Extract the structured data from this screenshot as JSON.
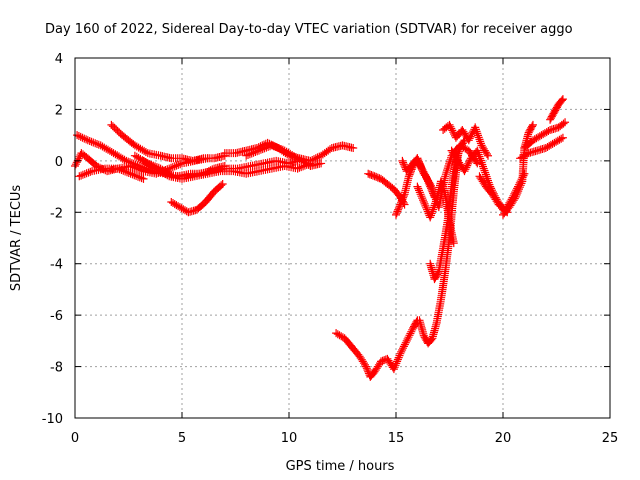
{
  "chart_data": {
    "type": "scatter",
    "title": "Day 160 of 2022, Sidereal Day-to-day VTEC variation (SDTVAR) for receiver aggo",
    "xlabel": "GPS time / hours",
    "ylabel": "SDTVAR / TECUs",
    "xlim": [
      0,
      25
    ],
    "ylim": [
      -10,
      4
    ],
    "xticks": [
      "0",
      "5",
      "10",
      "15",
      "20",
      "25"
    ],
    "yticks": [
      "4",
      "2",
      "0",
      "-2",
      "-4",
      "-6",
      "-8",
      "-10"
    ],
    "grid": true,
    "marker": "plus",
    "color": "#ff0000",
    "series": [
      {
        "x": [
          0.1,
          0.6,
          1.2,
          1.8,
          2.4,
          3.0,
          3.6,
          4.2,
          4.8,
          5.4,
          6.0,
          6.5,
          7.0
        ],
        "y": [
          1.0,
          0.8,
          0.6,
          0.3,
          0.0,
          -0.2,
          -0.4,
          -0.5,
          -0.6,
          -0.5,
          -0.5,
          -0.3,
          -0.2
        ]
      },
      {
        "x": [
          0.2,
          0.8,
          1.4,
          2.0,
          2.6,
          3.2,
          3.8,
          4.4,
          5.0,
          5.6,
          6.2
        ],
        "y": [
          -0.6,
          -0.4,
          -0.3,
          -0.3,
          -0.2,
          -0.4,
          -0.5,
          -0.3,
          -0.1,
          0.0,
          0.1
        ]
      },
      {
        "x": [
          0.0,
          0.3,
          0.6,
          1.0,
          1.5,
          2.0,
          2.6,
          3.2
        ],
        "y": [
          -0.2,
          0.3,
          0.1,
          -0.2,
          -0.4,
          -0.3,
          -0.5,
          -0.7
        ]
      },
      {
        "x": [
          1.7,
          2.2,
          2.8,
          3.4,
          4.0,
          4.5,
          5.0,
          5.5,
          6.0,
          6.5,
          7.0
        ],
        "y": [
          1.4,
          1.0,
          0.6,
          0.3,
          0.2,
          0.1,
          0.1,
          0.0,
          0.1,
          0.1,
          0.2
        ]
      },
      {
        "x": [
          2.8,
          3.4,
          4.0,
          4.6,
          5.2,
          5.8,
          6.4,
          7.0,
          7.6,
          8.2,
          8.8,
          9.4,
          10.0,
          10.4
        ],
        "y": [
          0.2,
          -0.1,
          -0.3,
          -0.6,
          -0.6,
          -0.5,
          -0.4,
          -0.3,
          -0.3,
          -0.2,
          -0.1,
          0.0,
          -0.1,
          0.0
        ]
      },
      {
        "x": [
          3.2,
          3.8,
          4.4,
          5.0,
          5.6,
          6.2,
          6.8,
          7.4,
          8.0,
          8.6,
          9.2,
          9.8,
          10.4,
          11.0
        ],
        "y": [
          0.0,
          -0.3,
          -0.6,
          -0.7,
          -0.6,
          -0.5,
          -0.4,
          -0.4,
          -0.5,
          -0.4,
          -0.3,
          -0.2,
          -0.3,
          -0.1
        ]
      },
      {
        "x": [
          4.5,
          4.9,
          5.3,
          5.7,
          6.1,
          6.5,
          6.9
        ],
        "y": [
          -1.6,
          -1.8,
          -2.0,
          -1.9,
          -1.6,
          -1.2,
          -0.9
        ]
      },
      {
        "x": [
          7.0,
          7.5,
          8.0,
          8.5,
          9.0,
          9.5,
          10.0,
          10.5,
          11.0,
          11.5,
          12.0,
          12.5,
          13.0
        ],
        "y": [
          0.3,
          0.3,
          0.4,
          0.5,
          0.7,
          0.5,
          0.2,
          0.1,
          0.0,
          0.2,
          0.5,
          0.6,
          0.5
        ]
      },
      {
        "x": [
          8.0,
          8.6,
          9.2,
          9.8,
          10.4,
          11.0,
          11.5
        ],
        "y": [
          0.2,
          0.4,
          0.6,
          0.4,
          0.1,
          -0.2,
          -0.1
        ]
      },
      {
        "x": [
          12.2,
          12.6,
          13.0,
          13.3,
          13.6,
          13.8,
          14.0,
          14.3,
          14.6,
          14.9,
          15.2,
          15.5,
          15.8,
          16.0
        ],
        "y": [
          -6.7,
          -6.9,
          -7.3,
          -7.6,
          -8.0,
          -8.4,
          -8.2,
          -7.8,
          -7.7,
          -8.1,
          -7.5,
          -7.0,
          -6.5,
          -6.2
        ]
      },
      {
        "x": [
          13.7,
          14.0,
          14.3,
          14.6,
          14.9,
          15.2,
          15.4
        ],
        "y": [
          -0.5,
          -0.6,
          -0.7,
          -0.9,
          -1.1,
          -1.4,
          -1.7
        ]
      },
      {
        "x": [
          15.0,
          15.2,
          15.4,
          15.6,
          15.8,
          16.0,
          16.2,
          16.4,
          16.6,
          16.8
        ],
        "y": [
          -2.1,
          -1.7,
          -1.3,
          -0.6,
          -0.2,
          0.1,
          -0.3,
          -0.6,
          -1.0,
          -1.4
        ]
      },
      {
        "x": [
          15.3,
          15.5,
          15.8,
          16.0,
          16.3,
          16.6,
          17.0,
          17.3,
          17.6,
          18.0,
          18.4,
          18.8
        ],
        "y": [
          0.0,
          -0.4,
          -0.1,
          0.1,
          -0.5,
          -0.9,
          -1.8,
          -0.6,
          0.2,
          0.6,
          0.4,
          -0.1
        ]
      },
      {
        "x": [
          16.0,
          16.3,
          16.6,
          16.9,
          17.1,
          17.3,
          17.5,
          17.7
        ],
        "y": [
          -1.0,
          -1.6,
          -2.2,
          -1.5,
          -0.8,
          -1.3,
          -2.4,
          -3.2
        ]
      },
      {
        "x": [
          16.1,
          16.3,
          16.5,
          16.7,
          16.9,
          17.1,
          17.3,
          17.5,
          17.7,
          17.9
        ],
        "y": [
          -6.2,
          -6.8,
          -7.1,
          -6.9,
          -6.3,
          -5.4,
          -4.3,
          -3.0,
          -1.2,
          0.2
        ]
      },
      {
        "x": [
          16.6,
          16.8,
          17.0,
          17.2,
          17.4,
          17.6,
          17.8,
          18.0,
          18.2
        ],
        "y": [
          -4.0,
          -4.6,
          -4.3,
          -3.4,
          -2.4,
          -1.0,
          0.0,
          0.5,
          0.8
        ]
      },
      {
        "x": [
          17.2,
          17.5,
          17.8,
          18.1,
          18.4,
          18.7,
          19.0,
          19.3
        ],
        "y": [
          1.2,
          1.4,
          0.9,
          1.2,
          0.8,
          1.3,
          0.6,
          0.2
        ]
      },
      {
        "x": [
          17.6,
          17.9,
          18.2,
          18.5,
          18.8,
          19.1,
          19.4,
          19.7,
          20.0,
          20.2
        ],
        "y": [
          0.4,
          0.0,
          -0.4,
          0.1,
          0.4,
          -0.3,
          -1.0,
          -1.5,
          -1.9,
          -2.0
        ]
      },
      {
        "x": [
          18.9,
          19.2,
          19.5,
          19.8,
          20.1,
          20.4,
          20.7,
          21.0
        ],
        "y": [
          -0.6,
          -1.0,
          -1.3,
          -1.7,
          -1.9,
          -1.5,
          -1.0,
          -0.5
        ]
      },
      {
        "x": [
          20.0,
          20.3,
          20.6,
          20.9,
          21.0,
          21.2,
          21.4
        ],
        "y": [
          -2.1,
          -1.8,
          -1.4,
          -0.8,
          0.5,
          1.1,
          1.4
        ]
      },
      {
        "x": [
          20.8,
          21.2,
          21.6,
          22.0,
          22.4,
          22.8
        ],
        "y": [
          0.1,
          0.3,
          0.4,
          0.5,
          0.7,
          0.9
        ]
      },
      {
        "x": [
          21.0,
          21.4,
          21.8,
          22.2,
          22.6,
          22.9
        ],
        "y": [
          0.5,
          0.8,
          1.0,
          1.2,
          1.3,
          1.5
        ]
      },
      {
        "x": [
          22.2,
          22.4,
          22.6,
          22.8
        ],
        "y": [
          1.6,
          1.9,
          2.2,
          2.4
        ]
      }
    ]
  }
}
